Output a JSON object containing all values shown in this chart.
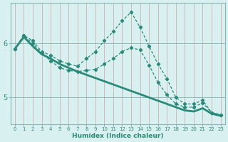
{
  "xlabel": "Humidex (Indice chaleur)",
  "x_values": [
    0,
    1,
    2,
    3,
    4,
    5,
    6,
    7,
    8,
    9,
    10,
    11,
    12,
    13,
    14,
    15,
    16,
    17,
    18,
    19,
    20,
    21,
    22,
    23
  ],
  "line1_y": [
    5.9,
    6.15,
    6.05,
    5.85,
    5.78,
    5.68,
    5.62,
    5.58,
    5.72,
    5.85,
    6.05,
    6.22,
    6.42,
    6.58,
    6.3,
    5.95,
    5.62,
    5.35,
    5.0,
    4.88,
    4.88,
    4.95,
    4.72,
    4.68
  ],
  "line2_y": [
    5.9,
    6.15,
    6.0,
    5.82,
    5.68,
    5.55,
    5.5,
    5.48,
    5.5,
    5.52,
    5.62,
    5.72,
    5.85,
    5.92,
    5.88,
    5.6,
    5.28,
    5.05,
    4.88,
    4.82,
    4.82,
    4.9,
    4.72,
    4.68
  ],
  "line3_y": [
    5.9,
    6.12,
    5.95,
    5.8,
    5.72,
    5.62,
    5.55,
    5.48,
    5.42,
    5.36,
    5.3,
    5.24,
    5.18,
    5.12,
    5.06,
    5.0,
    4.94,
    4.88,
    4.82,
    4.76,
    4.74,
    4.8,
    4.7,
    4.66
  ],
  "line_color": "#2a8a7a",
  "bg_color": "#d8f0f0",
  "grid_color": "#c0dada",
  "axis_color": "#8ab8b8",
  "ylim": [
    4.5,
    6.75
  ],
  "yticks": [
    5,
    6
  ],
  "xlim": [
    -0.5,
    23.5
  ]
}
